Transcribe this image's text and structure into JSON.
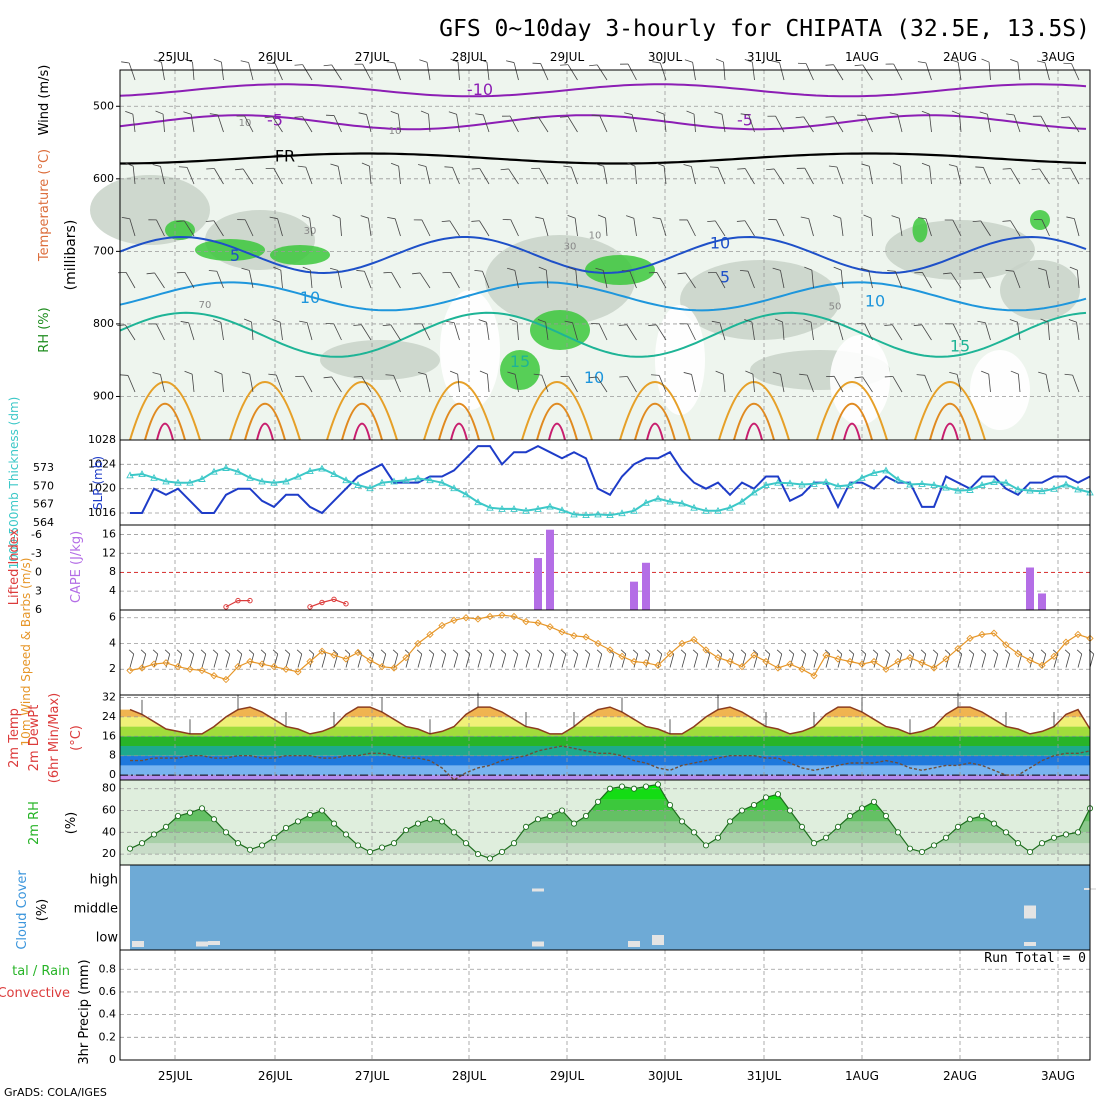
{
  "title": "GFS 0~10day 3-hourly for CHIPATA (32.5E, 13.5S)",
  "footer": "GrADS: COLA/IGES",
  "date_labels": [
    "25JUL",
    "26JUL",
    "27JUL",
    "28JUL",
    "29JUL",
    "30JUL",
    "31JUL",
    "1AUG",
    "2AUG",
    "3AUG"
  ],
  "chart_data": [
    {
      "type": "heatmap",
      "panel": "upper_air",
      "ylabel_parts": [
        "RH (%)",
        "Temperature (°C)",
        "Wind (m/s)",
        "(millibars)"
      ],
      "yticks": [
        500,
        600,
        700,
        800,
        900
      ],
      "ylim": [
        960,
        450
      ],
      "contour_labels": [
        "-10",
        "-5",
        "FR",
        "5",
        "10",
        "15",
        "10",
        "-5",
        "10",
        "5",
        "10",
        "15"
      ],
      "rh_labels": [
        "10",
        "10",
        "30",
        "70",
        "50",
        "10",
        "30"
      ],
      "colors": {
        "rh": "#3cc83c",
        "rh_light": "#dcefdc",
        "temp_neg": "#8c1eb4",
        "temp_5": "#1e50c8",
        "temp_10": "#1e96dc",
        "temp_15": "#1eb496",
        "temp_20": "#e6a028",
        "temp_30": "#c81e6e"
      }
    },
    {
      "type": "line",
      "panel": "thickness_slp",
      "ylabel_left": "1000-500mb Thickness (dm)",
      "ylabel_right": "SLP (mb)",
      "yticks_left": [
        573,
        570,
        567,
        564
      ],
      "yticks_right": [
        1028,
        1024,
        1020,
        1016
      ],
      "series": [
        {
          "name": "SLP (mb)",
          "color": "#1e3cc8",
          "values": [
            1016,
            1016,
            1020,
            1019,
            1020,
            1018,
            1016,
            1016,
            1019,
            1020,
            1020,
            1018,
            1017,
            1019,
            1019,
            1017,
            1016,
            1018,
            1020,
            1022,
            1023,
            1024,
            1021,
            1021,
            1021,
            1022,
            1022,
            1023,
            1025,
            1027,
            1027,
            1024,
            1026,
            1026,
            1027,
            1026,
            1025,
            1026,
            1025,
            1020,
            1019,
            1022,
            1024,
            1025,
            1025,
            1026,
            1023,
            1021,
            1020,
            1021,
            1019,
            1021,
            1020,
            1022,
            1022,
            1018,
            1019,
            1021,
            1021,
            1017,
            1021,
            1021,
            1020,
            1022,
            1021,
            1021,
            1017,
            1017,
            1022,
            1021,
            1020,
            1022,
            1022,
            1020,
            1019,
            1021,
            1021,
            1022,
            1022,
            1021,
            1022
          ]
        },
        {
          "name": "1000-500mb Thickness (dm)",
          "color": "#3cc8c8",
          "values": [
            571.8,
            572.0,
            571.4,
            570.8,
            570.6,
            570.6,
            571.2,
            572.4,
            573.0,
            572.4,
            571.4,
            570.8,
            570.6,
            570.8,
            571.6,
            572.5,
            572.9,
            572.0,
            571.0,
            570.2,
            569.7,
            570.6,
            570.8,
            571.0,
            571.3,
            571.0,
            570.6,
            569.7,
            568.7,
            567.4,
            566.5,
            566.3,
            566.3,
            566.0,
            566.3,
            566.7,
            566.1,
            565.4,
            565.3,
            565.4,
            565.3,
            565.6,
            566.0,
            567.3,
            568.0,
            567.5,
            567.2,
            566.5,
            566.0,
            566.0,
            566.5,
            567.5,
            569.0,
            570.2,
            570.6,
            570.5,
            570.3,
            570.4,
            570.7,
            570.0,
            570.2,
            571.4,
            572.2,
            572.6,
            571.1,
            570.3,
            570.4,
            570.2,
            569.8,
            569.3,
            569.4,
            570.2,
            570.7,
            570.6,
            569.5,
            569.3,
            569.2,
            569.6,
            570.3,
            569.5,
            569.0
          ]
        }
      ]
    },
    {
      "type": "bar",
      "panel": "cape_li",
      "ylabel_left": "Lifted Index",
      "ylabel_right": "CAPE (J/kg)",
      "yticks_left": [
        "-6",
        "-3",
        "0",
        "3",
        "6"
      ],
      "yticks_right": [
        "16",
        "12",
        "8",
        "4"
      ],
      "cape_bars": [
        {
          "step": 34,
          "value": 11
        },
        {
          "step": 35,
          "value": 17
        },
        {
          "step": 42,
          "value": 6
        },
        {
          "step": 43,
          "value": 10
        },
        {
          "step": 75,
          "value": 9
        },
        {
          "step": 76,
          "value": 3.5
        }
      ],
      "lifted_index": [
        {
          "step": 8,
          "value": 5.5
        },
        {
          "step": 9,
          "value": 4.5
        },
        {
          "step": 10,
          "value": 4.5
        },
        {
          "step": 15,
          "value": 5.5
        },
        {
          "step": 16,
          "value": 4.8
        },
        {
          "step": 17,
          "value": 4.3
        },
        {
          "step": 18,
          "value": 5.0
        }
      ],
      "colors": {
        "cape": "#b46ee6",
        "li": "#dc3c3c"
      }
    },
    {
      "type": "line",
      "panel": "wind10m",
      "ylabel": "10m Wind Speed & Barbs (m/s)",
      "yticks": [
        6,
        4,
        2
      ],
      "ylim": [
        0,
        6.6
      ],
      "series": [
        {
          "name": "10m Wind Speed",
          "color": "#e69628",
          "values": [
            1.9,
            2.1,
            2.4,
            2.5,
            2.2,
            2.0,
            1.9,
            1.5,
            1.2,
            2.2,
            2.6,
            2.4,
            2.2,
            2.0,
            1.8,
            2.6,
            3.4,
            3.1,
            2.8,
            3.3,
            2.7,
            2.2,
            2.1,
            2.9,
            4.0,
            4.7,
            5.4,
            5.8,
            6.0,
            5.9,
            6.1,
            6.2,
            6.1,
            5.7,
            5.6,
            5.3,
            4.9,
            4.6,
            4.5,
            4.0,
            3.5,
            3.0,
            2.6,
            2.5,
            2.3,
            3.2,
            4.0,
            4.3,
            3.5,
            2.9,
            2.6,
            2.2,
            3.1,
            2.6,
            2.1,
            2.4,
            2.0,
            1.5,
            3.1,
            2.8,
            2.6,
            2.4,
            2.6,
            2.0,
            2.6,
            2.9,
            2.5,
            2.1,
            2.8,
            3.6,
            4.4,
            4.7,
            4.8,
            3.9,
            3.2,
            2.7,
            2.3,
            3.0,
            4.1,
            4.7,
            4.4
          ]
        }
      ]
    },
    {
      "type": "area",
      "panel": "temp2m",
      "ylabel": "2m Temp 2m DewPt (6hr Min/Max) (°C)",
      "yticks": [
        32,
        24,
        16,
        8,
        0
      ],
      "ylim": [
        -2,
        33
      ],
      "series": [
        {
          "name": "2m Temp",
          "color": "#8c3c1e",
          "values": [
            27,
            25,
            22,
            19,
            18,
            17,
            17,
            20,
            24,
            27,
            28,
            26,
            23,
            20,
            19,
            17,
            18,
            20,
            25,
            28,
            28,
            26,
            23,
            20,
            19,
            17,
            18,
            20,
            25,
            28,
            28,
            26,
            23,
            20,
            19,
            17,
            17,
            20,
            24,
            27,
            28,
            26,
            23,
            20,
            19,
            17,
            17,
            20,
            24,
            27,
            28,
            26,
            23,
            20,
            19,
            17,
            18,
            20,
            25,
            28,
            28,
            26,
            23,
            20,
            19,
            17,
            18,
            20,
            25,
            28,
            28,
            26,
            23,
            20,
            19,
            17,
            18,
            20,
            25,
            27,
            19
          ]
        },
        {
          "name": "2m DewPt",
          "color": "#6e4e3a",
          "values": [
            6,
            6,
            7,
            7,
            7,
            8,
            8,
            7,
            7,
            8,
            8,
            7,
            7,
            8,
            8,
            8,
            7,
            7,
            8,
            8,
            9,
            9,
            8,
            7,
            7,
            6,
            3,
            -2,
            1,
            3,
            4,
            6,
            7,
            8,
            10,
            11,
            12,
            11,
            10,
            9,
            9,
            8,
            6,
            5,
            3,
            2,
            4,
            5,
            6,
            7,
            8,
            8,
            8,
            7,
            7,
            5,
            3,
            2,
            3,
            4,
            5,
            5,
            5,
            6,
            5,
            3,
            2,
            3,
            4,
            4,
            5,
            4,
            2,
            0,
            0,
            3,
            6,
            8,
            9,
            9,
            10
          ]
        }
      ],
      "colors": {
        "band_28_32": "#e67828",
        "band_24_28": "#f0b450",
        "band_20_24": "#f0f078",
        "band_16_20": "#a0dc3c",
        "band_12_16": "#28b428",
        "band_8_12": "#1eaa8c",
        "band_4_8": "#1e78dc",
        "band_0_4": "#78b4f0",
        "band_below_0": "#b48cf0"
      }
    },
    {
      "type": "area",
      "panel": "rh2m",
      "ylabel": "2m RH (%)",
      "yticks": [
        80,
        60,
        40,
        20
      ],
      "ylim": [
        10,
        88
      ],
      "series": [
        {
          "name": "2m RH",
          "color": "#1e8c1e",
          "values": [
            25,
            30,
            38,
            45,
            55,
            58,
            62,
            52,
            40,
            30,
            24,
            28,
            35,
            44,
            50,
            56,
            60,
            48,
            38,
            28,
            22,
            26,
            30,
            42,
            48,
            52,
            50,
            40,
            30,
            20,
            16,
            22,
            30,
            45,
            52,
            55,
            60,
            48,
            55,
            68,
            80,
            82,
            80,
            82,
            84,
            65,
            50,
            40,
            28,
            35,
            50,
            60,
            65,
            72,
            75,
            60,
            45,
            30,
            35,
            45,
            55,
            62,
            68,
            55,
            40,
            25,
            22,
            28,
            35,
            45,
            52,
            55,
            48,
            40,
            30,
            22,
            30,
            35,
            38,
            40,
            62
          ]
        }
      ]
    },
    {
      "type": "heatmap",
      "panel": "cloud",
      "ylabel": "Cloud Cover (%)",
      "yticks": [
        "high",
        "middle",
        "low"
      ],
      "colors": {
        "background": "#6eaad6",
        "cloud": "#ffffff"
      }
    },
    {
      "type": "bar",
      "panel": "precip",
      "ylabel_left": "Total / Rain / Convective",
      "ylabel_right": "3hr Precip (mm)",
      "yticks": [
        "0.8",
        "0.6",
        "0.4",
        "0.2",
        "0"
      ],
      "run_total": "Run Total = 0",
      "values": []
    }
  ]
}
